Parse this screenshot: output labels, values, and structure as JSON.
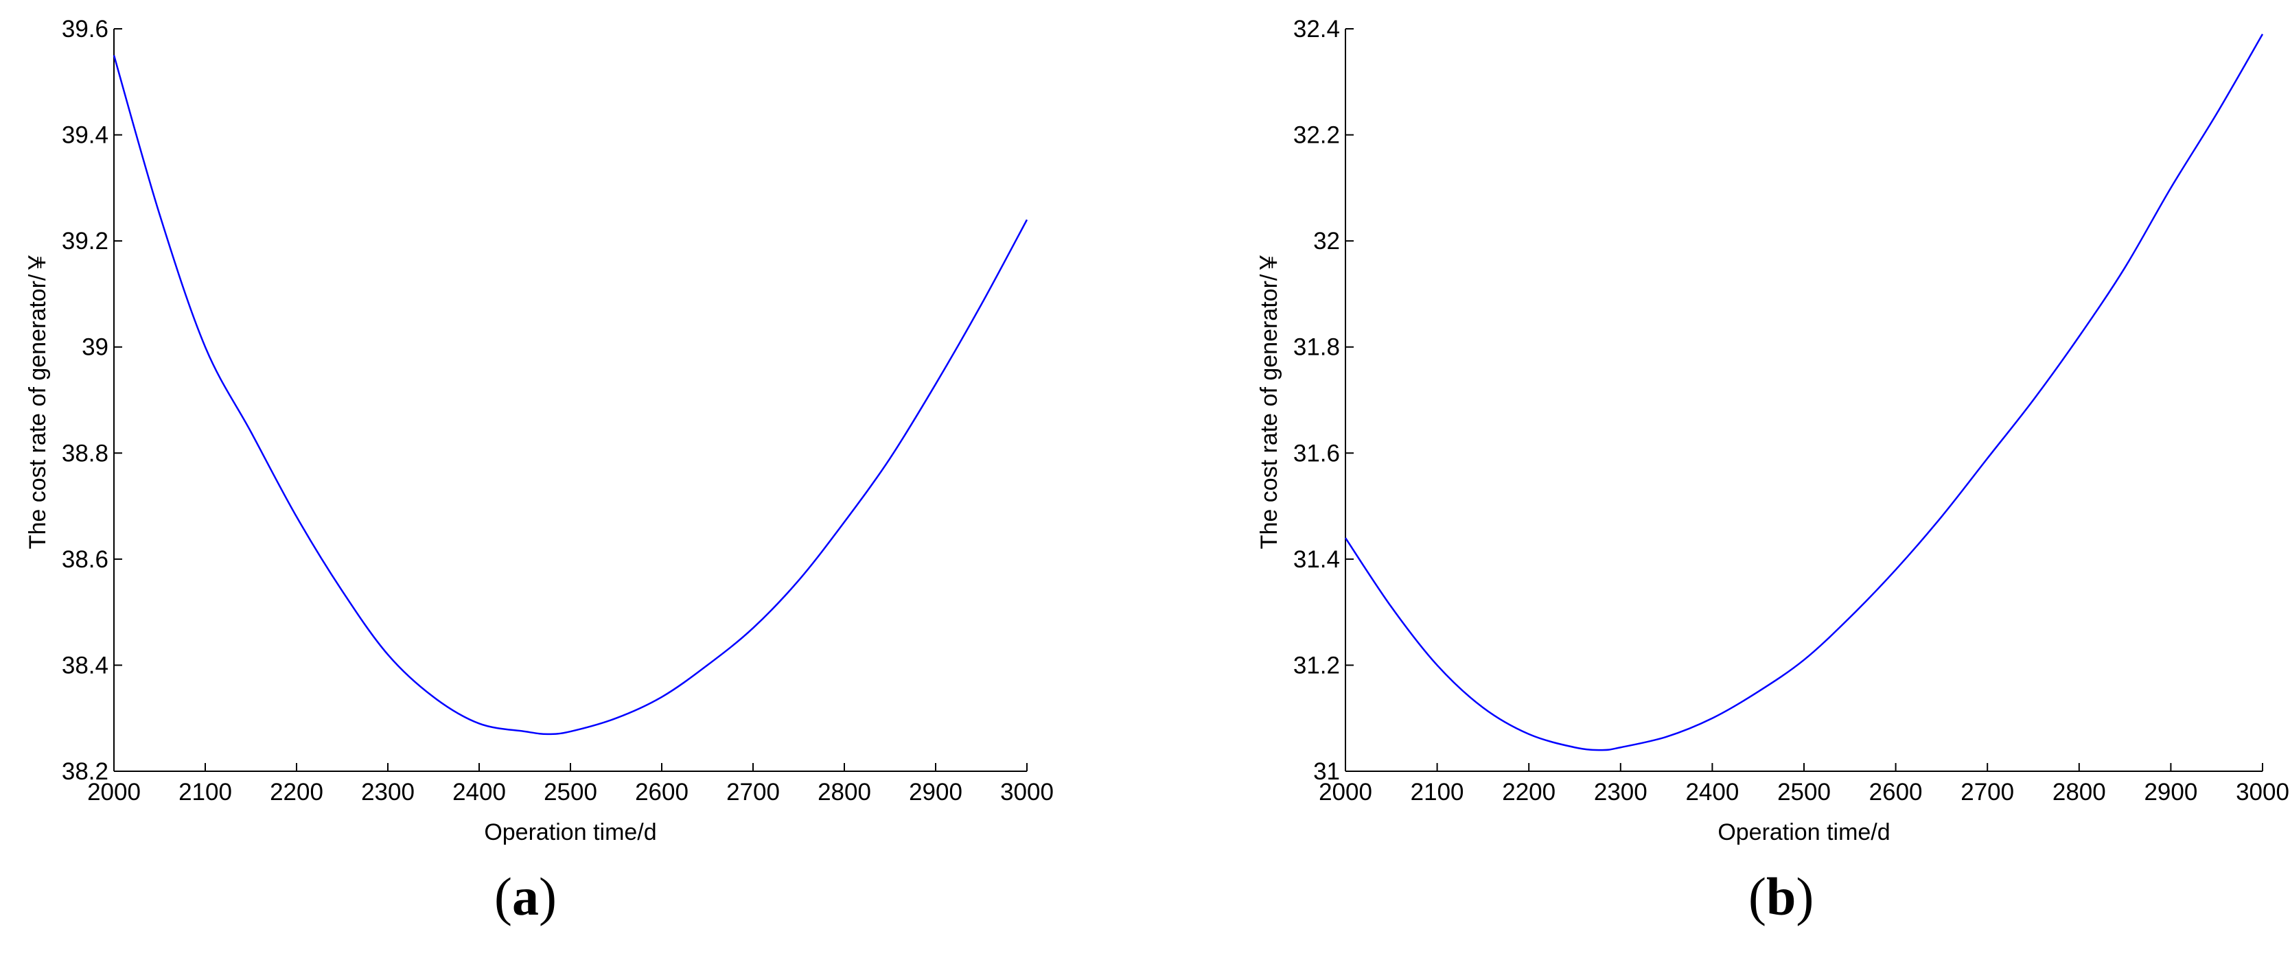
{
  "chart_data": [
    {
      "type": "line",
      "panel_label": "(a)",
      "panel_letter": "a",
      "xlabel": "Operation time/d",
      "ylabel": "The cost rate of generator/￥",
      "xlim": [
        2000,
        3000
      ],
      "ylim": [
        38.2,
        39.6
      ],
      "xticks": [
        2000,
        2100,
        2200,
        2300,
        2400,
        2500,
        2600,
        2700,
        2800,
        2900,
        3000
      ],
      "yticks": [
        38.2,
        38.4,
        38.6,
        38.8,
        39,
        39.2,
        39.4,
        39.6
      ],
      "xtick_labels": [
        "2000",
        "2100",
        "2200",
        "2300",
        "2400",
        "2500",
        "2600",
        "2700",
        "2800",
        "2900",
        "3000"
      ],
      "ytick_labels": [
        "38.2",
        "38.4",
        "38.6",
        "38.8",
        "39",
        "39.2",
        "39.4",
        "39.6"
      ],
      "series": [
        {
          "color": "#0000ff",
          "x": [
            2000,
            2050,
            2100,
            2150,
            2200,
            2250,
            2300,
            2350,
            2400,
            2450,
            2475,
            2500,
            2550,
            2600,
            2650,
            2700,
            2750,
            2800,
            2850,
            2900,
            2950,
            3000
          ],
          "y": [
            39.55,
            39.25,
            39.0,
            38.84,
            38.68,
            38.54,
            38.42,
            38.34,
            38.29,
            38.275,
            38.27,
            38.275,
            38.3,
            38.34,
            38.4,
            38.47,
            38.56,
            38.67,
            38.79,
            38.93,
            39.08,
            39.24
          ]
        }
      ]
    },
    {
      "type": "line",
      "panel_label": "(b)",
      "panel_letter": "b",
      "xlabel": "Operation time/d",
      "ylabel": "The cost rate of generator/￥",
      "xlim": [
        2000,
        3000
      ],
      "ylim": [
        31,
        32.4
      ],
      "xticks": [
        2000,
        2100,
        2200,
        2300,
        2400,
        2500,
        2600,
        2700,
        2800,
        2900,
        3000
      ],
      "yticks": [
        31,
        31.2,
        31.4,
        31.6,
        31.8,
        32,
        32.2,
        32.4
      ],
      "xtick_labels": [
        "2000",
        "2100",
        "2200",
        "2300",
        "2400",
        "2500",
        "2600",
        "2700",
        "2800",
        "2900",
        "3000"
      ],
      "ytick_labels": [
        "31",
        "31.2",
        "31.4",
        "31.6",
        "31.8",
        "32",
        "32.2",
        "32.4"
      ],
      "series": [
        {
          "color": "#0000ff",
          "x": [
            2000,
            2050,
            2100,
            2150,
            2200,
            2250,
            2280,
            2300,
            2350,
            2400,
            2450,
            2500,
            2550,
            2600,
            2650,
            2700,
            2750,
            2800,
            2850,
            2900,
            2950,
            3000
          ],
          "y": [
            31.44,
            31.31,
            31.2,
            31.12,
            31.07,
            31.045,
            31.04,
            31.045,
            31.065,
            31.1,
            31.15,
            31.21,
            31.29,
            31.38,
            31.48,
            31.59,
            31.7,
            31.82,
            31.95,
            32.1,
            32.24,
            32.39
          ]
        }
      ]
    }
  ]
}
